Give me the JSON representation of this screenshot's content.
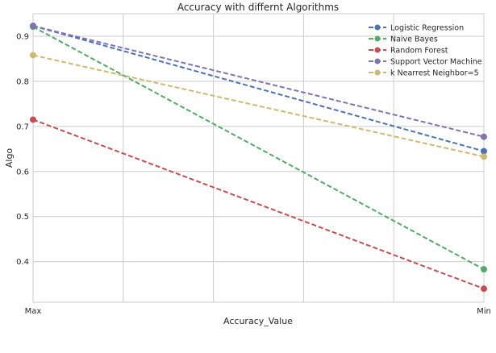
{
  "chart_data": {
    "type": "line",
    "title": "Accuracy with differnt Algorithms",
    "xlabel": "Accuracy_Value",
    "ylabel": "Algo",
    "categories": [
      "Max",
      "Min"
    ],
    "ylim": [
      0.31,
      0.95
    ],
    "yticks": [
      "0.4",
      "0.5",
      "0.6",
      "0.7",
      "0.8",
      "0.9"
    ],
    "grid": true,
    "legend_position": "top-right",
    "series": [
      {
        "name": "Logistic Regression",
        "values": [
          0.923,
          0.645
        ],
        "color": "#4c72b0"
      },
      {
        "name": "Naive Bayes",
        "values": [
          0.921,
          0.383
        ],
        "color": "#55a868"
      },
      {
        "name": "Random Forest",
        "values": [
          0.715,
          0.34
        ],
        "color": "#c44e52"
      },
      {
        "name": "Support Vector Machine",
        "values": [
          0.923,
          0.677
        ],
        "color": "#8172b2"
      },
      {
        "name": "k Nearrest Neighbor=5",
        "values": [
          0.858,
          0.633
        ],
        "color": "#ccb974"
      }
    ]
  }
}
